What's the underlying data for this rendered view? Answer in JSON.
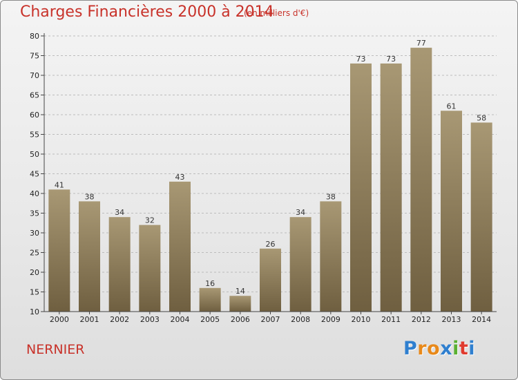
{
  "header": {
    "title": "Charges Financières 2000 à 2014",
    "subtitle": "(en milliers d'€)"
  },
  "footer": {
    "commune": "NERNIER",
    "logo": [
      "P",
      "r",
      "o",
      "x",
      "i",
      "t",
      "i"
    ],
    "logo_colors": [
      "#2f7fcf",
      "#e8891a",
      "#e8891a",
      "#2f7fcf",
      "#5ab031",
      "#e03a2e",
      "#2f7fcf"
    ]
  },
  "colors": {
    "bar_top": "#a89874",
    "bar_bottom": "#6f5f40",
    "title": "#c8322a",
    "gridline": "#bcbcbc"
  },
  "chart_data": {
    "type": "bar",
    "title": "Charges Financières 2000 à 2014",
    "subtitle": "(en milliers d'€)",
    "categories": [
      "2000",
      "2001",
      "2002",
      "2003",
      "2004",
      "2005",
      "2006",
      "2007",
      "2008",
      "2009",
      "2010",
      "2011",
      "2012",
      "2013",
      "2014"
    ],
    "values": [
      41,
      38,
      34,
      32,
      43,
      16,
      14,
      26,
      34,
      38,
      73,
      73,
      77,
      61,
      58
    ],
    "ylim": [
      10,
      80
    ],
    "yticks": [
      "10",
      "15",
      "20",
      "25",
      "30",
      "35",
      "40",
      "45",
      "50",
      "55",
      "60",
      "65",
      "70",
      "75",
      "80"
    ],
    "grid": "horizontal dashed",
    "legend": "none"
  }
}
